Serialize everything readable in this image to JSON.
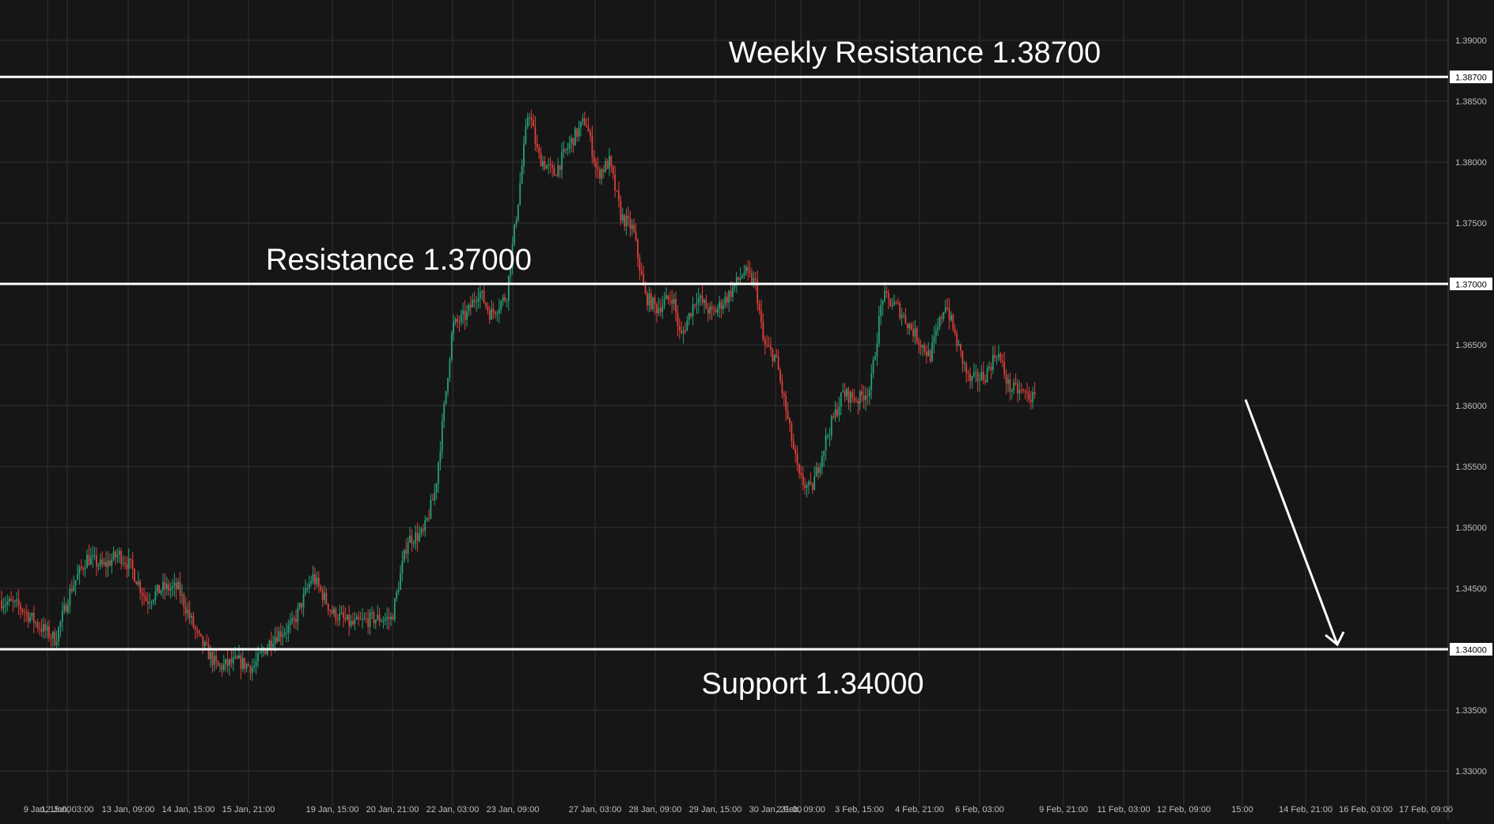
{
  "colors": {
    "background": "#161616",
    "grid": "#333333",
    "text": "#bfbfbf",
    "bullish": "#26a17b",
    "bearish": "#e0403a",
    "level_line": "#ffffff",
    "axis_label_bg": "#ffffff",
    "axis_label_text": "#000000",
    "annotation_text": "#ffffff"
  },
  "chart_data": {
    "type": "candlestick",
    "title": "",
    "xlabel": "",
    "ylabel": "",
    "ylim": [
      1.3275,
      1.3915
    ],
    "grid": true,
    "y_ticks": [
      "1.33000",
      "1.33500",
      "1.34000",
      "1.34500",
      "1.35000",
      "1.35500",
      "1.36000",
      "1.36500",
      "1.37000",
      "1.37500",
      "1.38000",
      "1.38500",
      "1.39000"
    ],
    "x_ticks": [
      "9 Jan, 15:00",
      "12 Jan, 03:00",
      "13 Jan, 09:00",
      "14 Jan, 15:00",
      "15 Jan, 21:00",
      "19 Jan, 15:00",
      "20 Jan, 21:00",
      "22 Jan, 03:00",
      "23 Jan, 09:00",
      "27 Jan, 03:00",
      "28 Jan, 09:00",
      "29 Jan, 15:00",
      "30 Jan, 21:00",
      "2 Feb, 09:00",
      "3 Feb, 15:00",
      "4 Feb, 21:00",
      "6 Feb, 03:00",
      "9 Feb, 21:00",
      "11 Feb, 03:00",
      "12 Feb, 09:00",
      "15:00",
      "14 Feb, 21:00",
      "16 Feb, 03:00",
      "17 Feb, 09:00"
    ],
    "levels": [
      {
        "label": "Weekly Resistance 1.38700",
        "value": 1.387,
        "price_label": "1.38700"
      },
      {
        "label": "Resistance 1.37000",
        "value": 1.37,
        "price_label": "1.37000"
      },
      {
        "label": "Support 1.34000",
        "value": 1.34,
        "price_label": "1.34000"
      }
    ],
    "price_path": [
      [
        0,
        1.344
      ],
      [
        25,
        1.3435
      ],
      [
        48,
        1.342
      ],
      [
        70,
        1.3408
      ],
      [
        90,
        1.345
      ],
      [
        110,
        1.3475
      ],
      [
        130,
        1.3468
      ],
      [
        150,
        1.3478
      ],
      [
        165,
        1.3468
      ],
      [
        185,
        1.344
      ],
      [
        205,
        1.345
      ],
      [
        225,
        1.345
      ],
      [
        250,
        1.341
      ],
      [
        275,
        1.3385
      ],
      [
        300,
        1.339
      ],
      [
        320,
        1.3385
      ],
      [
        345,
        1.341
      ],
      [
        370,
        1.342
      ],
      [
        395,
        1.346
      ],
      [
        420,
        1.343
      ],
      [
        445,
        1.342
      ],
      [
        470,
        1.3425
      ],
      [
        495,
        1.3425
      ],
      [
        515,
        1.349
      ],
      [
        535,
        1.3495
      ],
      [
        550,
        1.353
      ],
      [
        560,
        1.359
      ],
      [
        572,
        1.3665
      ],
      [
        590,
        1.3675
      ],
      [
        605,
        1.3695
      ],
      [
        620,
        1.3675
      ],
      [
        640,
        1.369
      ],
      [
        655,
        1.377
      ],
      [
        668,
        1.3845
      ],
      [
        680,
        1.3805
      ],
      [
        700,
        1.379
      ],
      [
        720,
        1.3815
      ],
      [
        740,
        1.3835
      ],
      [
        755,
        1.379
      ],
      [
        770,
        1.38
      ],
      [
        785,
        1.3755
      ],
      [
        800,
        1.3745
      ],
      [
        815,
        1.369
      ],
      [
        830,
        1.368
      ],
      [
        850,
        1.369
      ],
      [
        860,
        1.3655
      ],
      [
        880,
        1.369
      ],
      [
        900,
        1.3675
      ],
      [
        920,
        1.369
      ],
      [
        940,
        1.371
      ],
      [
        955,
        1.37
      ],
      [
        965,
        1.365
      ],
      [
        980,
        1.364
      ],
      [
        995,
        1.359
      ],
      [
        1010,
        1.354
      ],
      [
        1025,
        1.353
      ],
      [
        1045,
        1.3575
      ],
      [
        1065,
        1.361
      ],
      [
        1085,
        1.3605
      ],
      [
        1100,
        1.3615
      ],
      [
        1115,
        1.369
      ],
      [
        1135,
        1.368
      ],
      [
        1155,
        1.366
      ],
      [
        1175,
        1.364
      ],
      [
        1195,
        1.3685
      ],
      [
        1210,
        1.365
      ],
      [
        1225,
        1.362
      ],
      [
        1245,
        1.3625
      ],
      [
        1260,
        1.3645
      ],
      [
        1275,
        1.3615
      ],
      [
        1295,
        1.361
      ],
      [
        1308,
        1.3605
      ]
    ],
    "projection": {
      "from": 1.3605,
      "to": 1.34,
      "direction": "down"
    }
  }
}
